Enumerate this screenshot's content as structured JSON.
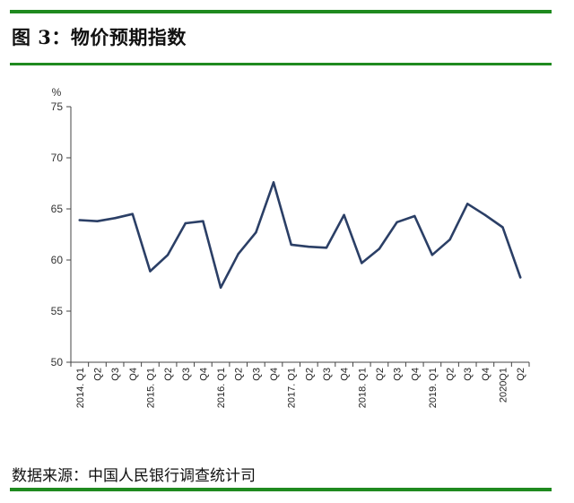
{
  "figure": {
    "title": "图 3：物价预期指数",
    "source": "数据来源：中国人民银行调查统计司"
  },
  "chart_data": {
    "type": "line",
    "title": "",
    "xlabel": "",
    "ylabel": "%",
    "ylim": [
      50,
      75
    ],
    "yticks": [
      50,
      55,
      60,
      65,
      70,
      75
    ],
    "grid": false,
    "legend": "none",
    "line_color": "#2b3f66",
    "categories": [
      "2014. Q1",
      "Q2",
      "Q3",
      "Q4",
      "2015. Q1",
      "Q2",
      "Q3",
      "Q4",
      "2016. Q1",
      "Q2",
      "Q3",
      "Q4",
      "2017. Q1",
      "Q2",
      "Q3",
      "Q4",
      "2018. Q1",
      "Q2",
      "Q3",
      "Q4",
      "2019. Q1",
      "Q2",
      "Q3",
      "Q4",
      "2020Q1",
      "Q2"
    ],
    "series": [
      {
        "values": [
          63.9,
          63.8,
          64.1,
          64.5,
          58.9,
          60.5,
          63.6,
          63.8,
          57.3,
          60.6,
          62.7,
          67.6,
          61.5,
          61.3,
          61.2,
          64.4,
          59.7,
          61.1,
          63.7,
          64.3,
          60.5,
          62.0,
          65.5,
          64.4,
          63.2,
          58.3
        ]
      }
    ]
  }
}
